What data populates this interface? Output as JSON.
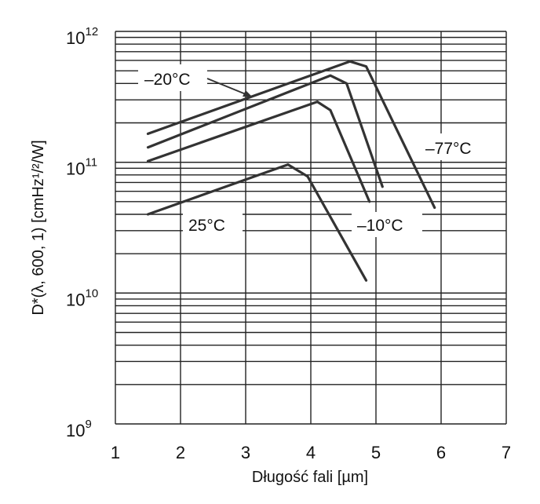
{
  "chart_data": {
    "type": "line",
    "title": "",
    "xlabel": "Długość fali [µm]",
    "ylabel": "D*(λ, 600, 1) [cmHz¹/²/W]",
    "xlim": [
      1,
      7
    ],
    "ylim": [
      1000000000.0,
      1000000000000.0
    ],
    "yscale": "log",
    "grid": true,
    "x_ticks": [
      "1",
      "2",
      "3",
      "4",
      "5",
      "6",
      "7"
    ],
    "y_ticks": [
      {
        "base": "10",
        "exp": "9",
        "value": 1000000000.0
      },
      {
        "base": "10",
        "exp": "10",
        "value": 10000000000.0
      },
      {
        "base": "10",
        "exp": "11",
        "value": 100000000000.0
      },
      {
        "base": "10",
        "exp": "12",
        "value": 1000000000000.0
      }
    ],
    "series": [
      {
        "name": "–77°C",
        "x": [
          1.5,
          4.6,
          4.85,
          5.9
        ],
        "y": [
          165000000000.0,
          590000000000.0,
          540000000000.0,
          45000000000.0
        ]
      },
      {
        "name": "–20°C",
        "x": [
          1.5,
          4.3,
          4.55,
          5.1
        ],
        "y": [
          130000000000.0,
          460000000000.0,
          400000000000.0,
          65000000000.0
        ]
      },
      {
        "name": "–10°C",
        "x": [
          1.5,
          4.1,
          4.3,
          4.9
        ],
        "y": [
          102000000000.0,
          290000000000.0,
          250000000000.0,
          50000000000.0
        ]
      },
      {
        "name": "25°C",
        "x": [
          1.5,
          3.65,
          3.95,
          4.85
        ],
        "y": [
          40000000000.0,
          96000000000.0,
          78000000000.0,
          12500000000.0
        ]
      }
    ],
    "annotations": [
      {
        "text": "–20°C",
        "series": "–20°C"
      },
      {
        "text": "–77°C",
        "series": "–77°C"
      },
      {
        "text": "–10°C",
        "series": "–10°C"
      },
      {
        "text": "25°C",
        "series": "25°C"
      }
    ],
    "colors": {
      "line": "#333333",
      "grid": "#222222",
      "text": "#111111"
    }
  }
}
